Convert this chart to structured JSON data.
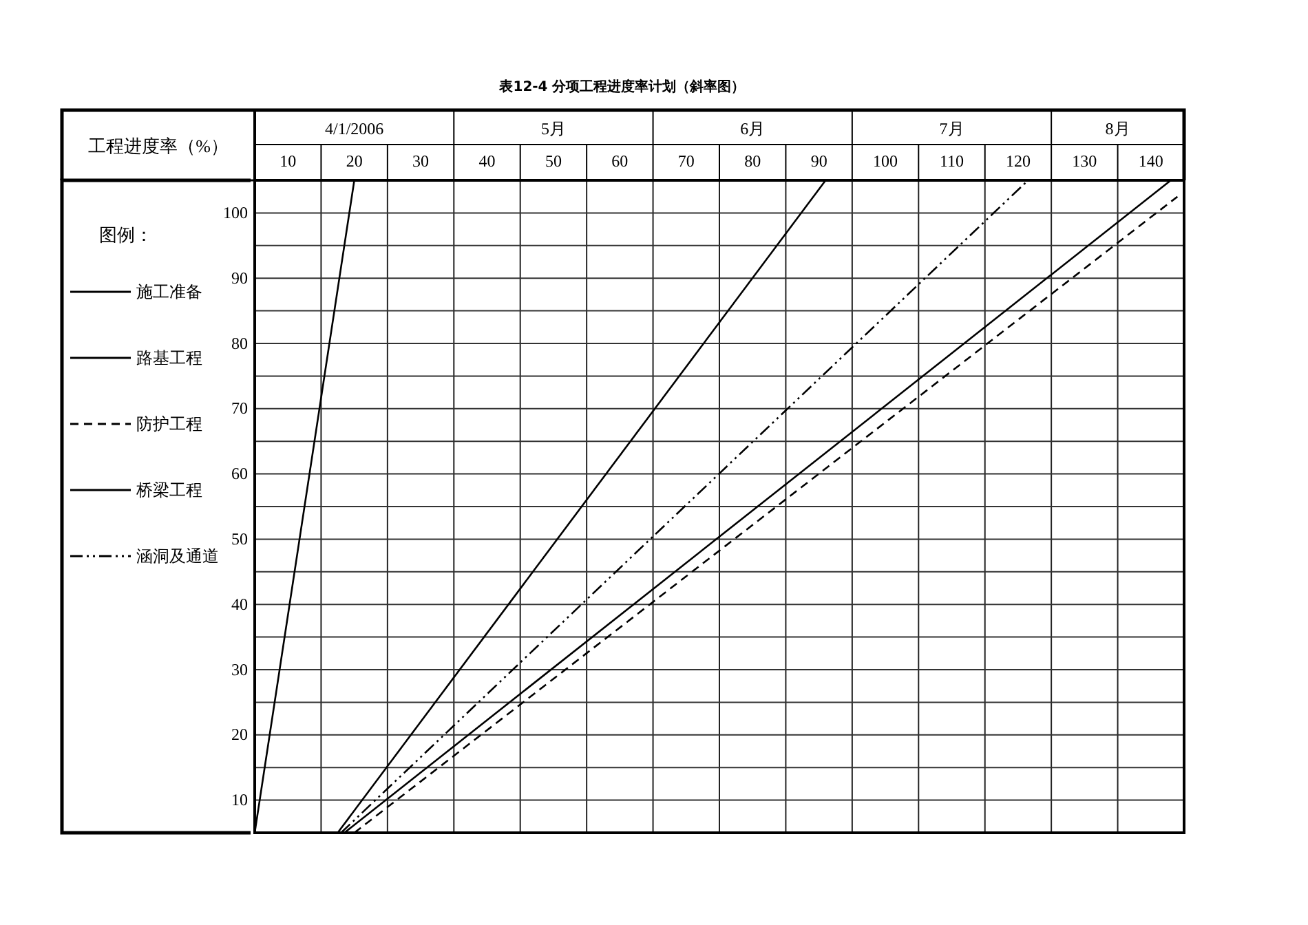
{
  "chart_data": {
    "type": "line",
    "title": "表12-4 分项工程进度率计划（斜率图）",
    "ylabel": "工程进度率（%）",
    "legend_title": "图例：",
    "legend": "left",
    "xlim": [
      5,
      145
    ],
    "xticks": [
      10,
      20,
      30,
      40,
      50,
      60,
      70,
      80,
      90,
      100,
      110,
      120,
      130,
      140
    ],
    "annotations": [
      "4/1/2006",
      "5月",
      "6月",
      "7月",
      "8月"
    ],
    "ylim": [
      5,
      105
    ],
    "yticks": [
      10,
      {
        "value": 15,
        "label": null
      },
      20,
      {
        "value": 25,
        "label": null
      },
      30,
      {
        "value": 35,
        "label": null
      },
      40,
      {
        "value": 45,
        "label": null
      },
      50,
      {
        "value": 55,
        "label": null
      },
      60,
      {
        "value": 65,
        "label": null
      },
      70,
      {
        "value": 75,
        "label": null
      },
      80,
      {
        "value": 85,
        "label": null
      },
      90,
      {
        "value": 95,
        "label": null
      },
      100
    ],
    "grid": true,
    "series": [
      {
        "name": "施工准备",
        "color": "#000000",
        "line_style": "solid",
        "x": [
          5,
          20
        ],
        "values": [
          5,
          105
        ]
      },
      {
        "name": "路基工程",
        "color": "#000000",
        "line_style": "solid",
        "x": [
          18.5,
          143
        ],
        "values": [
          5,
          105
        ]
      },
      {
        "name": "防护工程",
        "color": "#000000",
        "line_style": "dashed",
        "x": [
          20,
          144
        ],
        "values": [
          5,
          102.5
        ]
      },
      {
        "name": "桥梁工程",
        "color": "#000000",
        "line_style": "solid",
        "x": [
          17.5,
          91
        ],
        "values": [
          5,
          105
        ]
      },
      {
        "name": "涵洞及通道",
        "color": "#000000",
        "line_style": "dotted",
        "x": [
          18,
          121.5
        ],
        "values": [
          5,
          105
        ]
      }
    ]
  }
}
